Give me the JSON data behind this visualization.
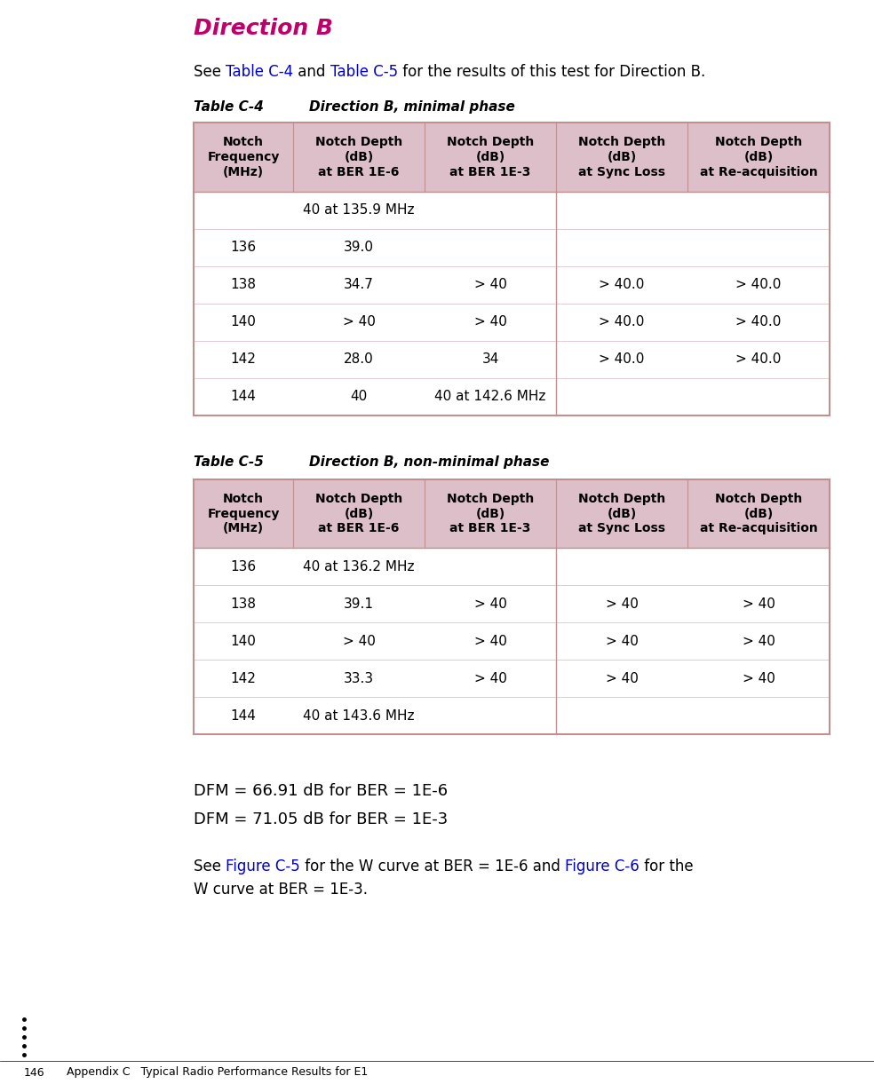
{
  "page_bg": "#ffffff",
  "title_direction_b": "Direction B",
  "title_color": "#c0006a",
  "intro_text_parts": [
    {
      "text": "See ",
      "color": "#000000"
    },
    {
      "text": "Table C-4",
      "color": "#0000cc"
    },
    {
      "text": " and ",
      "color": "#000000"
    },
    {
      "text": "Table C-5",
      "color": "#0000cc"
    },
    {
      "text": " for the results of this test for Direction B.",
      "color": "#000000"
    }
  ],
  "table1_label": "Table C-4",
  "table1_title": "Direction B, minimal phase",
  "table2_label": "Table C-5",
  "table2_title": "Direction B, non-minimal phase",
  "header_bg": "#ddbfca",
  "row_bg_white": "#ffffff",
  "table_border_color": "#c09090",
  "col_headers": [
    "Notch\nFrequency\n(MHz)",
    "Notch Depth\n(dB)\nat BER 1E-6",
    "Notch Depth\n(dB)\nat BER 1E-3",
    "Notch Depth\n(dB)\nat Sync Loss",
    "Notch Depth\n(dB)\nat Re-acquisition"
  ],
  "table1_rows": [
    [
      "",
      "40 at 135.9 MHz",
      "",
      "",
      ""
    ],
    [
      "136",
      "39.0",
      "",
      "",
      ""
    ],
    [
      "138",
      "34.7",
      "> 40",
      "> 40.0",
      "> 40.0"
    ],
    [
      "140",
      "> 40",
      "> 40",
      "> 40.0",
      "> 40.0"
    ],
    [
      "142",
      "28.0",
      "34",
      "> 40.0",
      "> 40.0"
    ],
    [
      "144",
      "40",
      "40 at 142.6 MHz",
      "",
      ""
    ]
  ],
  "table2_rows": [
    [
      "136",
      "40 at 136.2 MHz",
      "",
      "",
      ""
    ],
    [
      "138",
      "39.1",
      "> 40",
      "> 40",
      "> 40"
    ],
    [
      "140",
      "> 40",
      "> 40",
      "> 40",
      "> 40"
    ],
    [
      "142",
      "33.3",
      "> 40",
      "> 40",
      "> 40"
    ],
    [
      "144",
      "40 at 143.6 MHz",
      "",
      "",
      ""
    ]
  ],
  "dfm_lines": [
    "DFM = 66.91 dB for BER = 1E-6",
    "DFM = 71.05 dB for BER = 1E-3"
  ],
  "see_parts": [
    {
      "text": "See ",
      "color": "#000000"
    },
    {
      "text": "Figure C-5",
      "color": "#0000cc"
    },
    {
      "text": " for the W curve at BER = 1E-6 and ",
      "color": "#000000"
    },
    {
      "text": "Figure C-6",
      "color": "#0000cc"
    },
    {
      "text": " for the",
      "color": "#000000"
    }
  ],
  "see_line2": "W curve at BER = 1E-3.",
  "page_number": "146",
  "footer_text": "Appendix C   Typical Radio Performance Results for E1"
}
